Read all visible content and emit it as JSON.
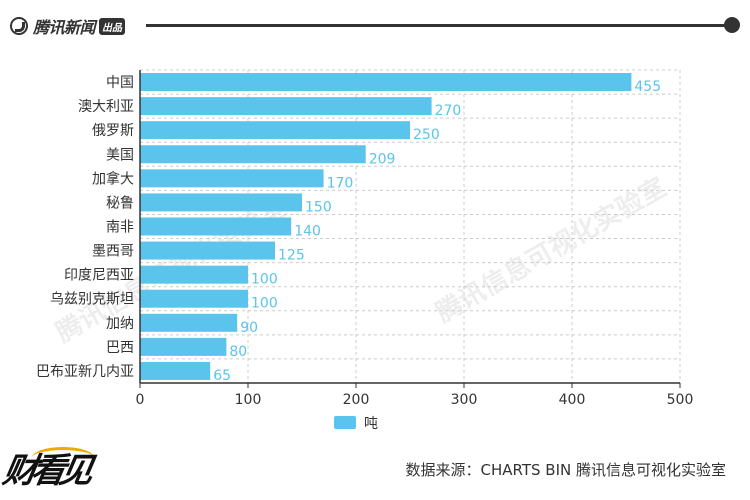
{
  "header": {
    "brand": "腾讯新闻",
    "brand_tag": "出品"
  },
  "watermark": "腾讯信息可视化实验室",
  "footer": {
    "logo_text": "财看见",
    "source": "数据来源：CHARTS BIN  腾讯信息可视化实验室"
  },
  "colors": {
    "bar": "#5ac4ec",
    "label": "#5ac4ec",
    "text": "#333333",
    "grid": "#cccccc"
  },
  "chart_data": {
    "type": "bar",
    "orientation": "horizontal",
    "categories": [
      "中国",
      "澳大利亚",
      "俄罗斯",
      "美国",
      "加拿大",
      "秘鲁",
      "南非",
      "墨西哥",
      "印度尼西亚",
      "乌兹别克斯坦",
      "加纳",
      "巴西",
      "巴布亚新几内亚"
    ],
    "series": [
      {
        "name": "吨",
        "values": [
          455,
          270,
          250,
          209,
          170,
          150,
          140,
          125,
          100,
          100,
          90,
          80,
          65
        ]
      }
    ],
    "xlim": [
      0,
      500
    ],
    "xticks": [
      0,
      100,
      200,
      300,
      400,
      500
    ],
    "grid": true,
    "legend_position": "bottom"
  }
}
